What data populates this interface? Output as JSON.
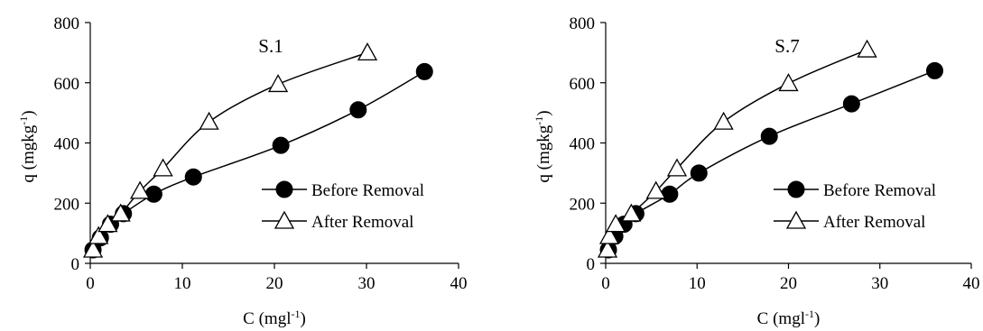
{
  "chart_data": [
    {
      "type": "line",
      "title": "S.1",
      "xlabel": {
        "main": "C (mgl",
        "sup": "-1",
        "tail": ")"
      },
      "ylabel": {
        "main": "q (mgkg",
        "sup": "-1",
        "tail": ")"
      },
      "xlim": [
        0,
        40
      ],
      "ylim": [
        0,
        800
      ],
      "xticks": [
        "0",
        "10",
        "20",
        "30",
        "40"
      ],
      "yticks": [
        "0",
        "200",
        "400",
        "600",
        "800"
      ],
      "legend_position": "center-right",
      "series": [
        {
          "name": "Before Removal",
          "marker": "circle-filled",
          "x": [
            0.3,
            1.1,
            2.2,
            3.6,
            6.9,
            11.2,
            20.7,
            29.1,
            36.3
          ],
          "y": [
            45,
            85,
            130,
            165,
            230,
            287,
            392,
            510,
            637
          ]
        },
        {
          "name": "After Removal",
          "marker": "triangle-open",
          "x": [
            0.3,
            0.9,
            1.9,
            3.3,
            5.4,
            7.9,
            12.9,
            20.4,
            30.1
          ],
          "y": [
            45,
            90,
            130,
            165,
            240,
            315,
            470,
            595,
            700
          ]
        }
      ]
    },
    {
      "type": "line",
      "title": "S.7",
      "xlabel": {
        "main": "C (mgl",
        "sup": "-1",
        "tail": ")"
      },
      "ylabel": {
        "main": "q (mgkg",
        "sup": "-1",
        "tail": ")"
      },
      "xlim": [
        0,
        40
      ],
      "ylim": [
        0,
        800
      ],
      "xticks": [
        "0",
        "10",
        "20",
        "30",
        "40"
      ],
      "yticks": [
        "0",
        "200",
        "400",
        "600",
        "800"
      ],
      "legend_position": "center-right",
      "series": [
        {
          "name": "Before Removal",
          "marker": "circle-filled",
          "x": [
            0.3,
            1.0,
            2.0,
            3.3,
            7.0,
            10.2,
            17.9,
            26.9,
            36.0
          ],
          "y": [
            45,
            90,
            130,
            165,
            230,
            300,
            422,
            530,
            640
          ]
        },
        {
          "name": "After Removal",
          "marker": "triangle-open",
          "x": [
            0.2,
            0.4,
            1.1,
            2.8,
            5.5,
            7.8,
            12.9,
            20.0,
            28.6
          ],
          "y": [
            45,
            90,
            130,
            165,
            240,
            315,
            470,
            598,
            710
          ]
        }
      ]
    }
  ]
}
